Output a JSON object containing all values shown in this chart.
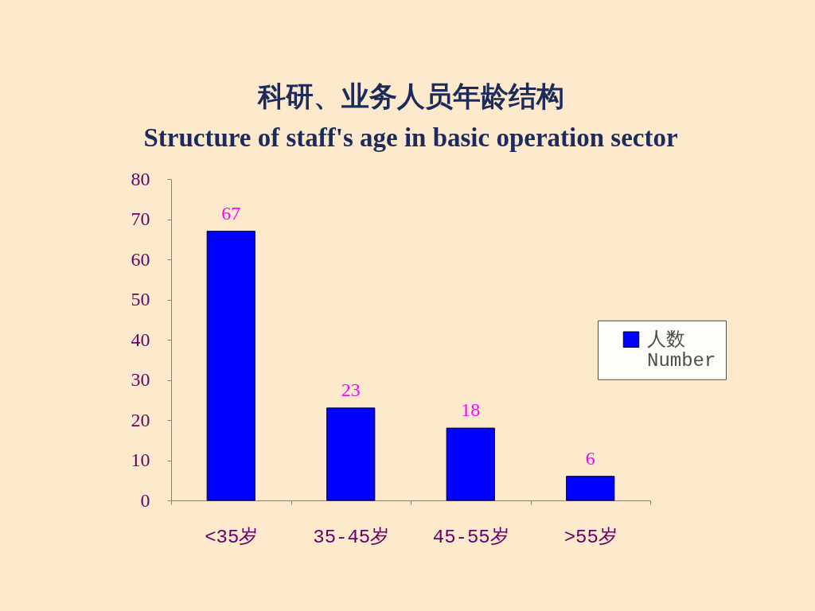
{
  "chart_data": {
    "type": "bar",
    "title": "科研、业务人员年龄结构",
    "subtitle": "Structure of staff's age in basic operation sector",
    "categories": [
      "<35岁",
      "35-45岁",
      "45-55岁",
      ">55岁"
    ],
    "series": [
      {
        "name": "人数\nNumber",
        "color": "#0000ff",
        "values": [
          67,
          23,
          18,
          6
        ]
      }
    ],
    "ylim": [
      0,
      80
    ],
    "yticks": [
      0,
      10,
      20,
      30,
      40,
      50,
      60,
      70,
      80
    ],
    "grid": false,
    "legend": "right",
    "data_labels": true
  }
}
